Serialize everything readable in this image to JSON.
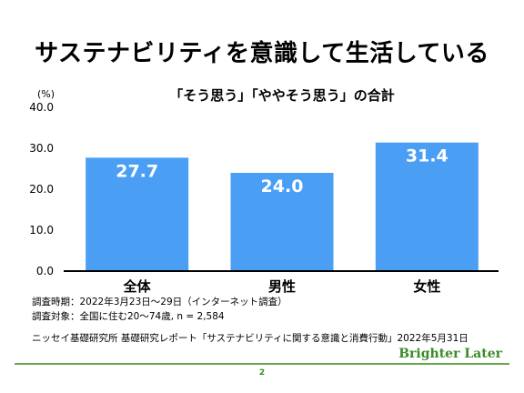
{
  "slide": {
    "title": "サステナビリティを意識して生活している",
    "unit": "(%)",
    "notes": [
      "調査時期：2022年3月23日～29日（インターネット調査）",
      "調査対象：全国に住む20～74歳, n = 2,584"
    ],
    "source": "ニッセイ基礎研究所 基礎研究レポート「サステナビリティに関する意識と消費行動」2022年5月31日",
    "brand": "Brighter Later",
    "page_number": "2",
    "colors": {
      "bar": "#4a9ff5",
      "brand": "#3a8a2a",
      "axis": "#000000"
    }
  },
  "chart_data": {
    "type": "bar",
    "title": "「そう思う」「ややそう思う」の合計",
    "ylabel": "(%)",
    "categories": [
      "全体",
      "男性",
      "女性"
    ],
    "values": [
      27.7,
      24.0,
      31.4
    ],
    "ylim": [
      0,
      40
    ],
    "yticks": [
      "0.0",
      "10.0",
      "20.0",
      "30.0",
      "40.0"
    ],
    "data_labels": [
      "27.7",
      "24.0",
      "31.4"
    ],
    "grid": false,
    "legend": "none"
  }
}
